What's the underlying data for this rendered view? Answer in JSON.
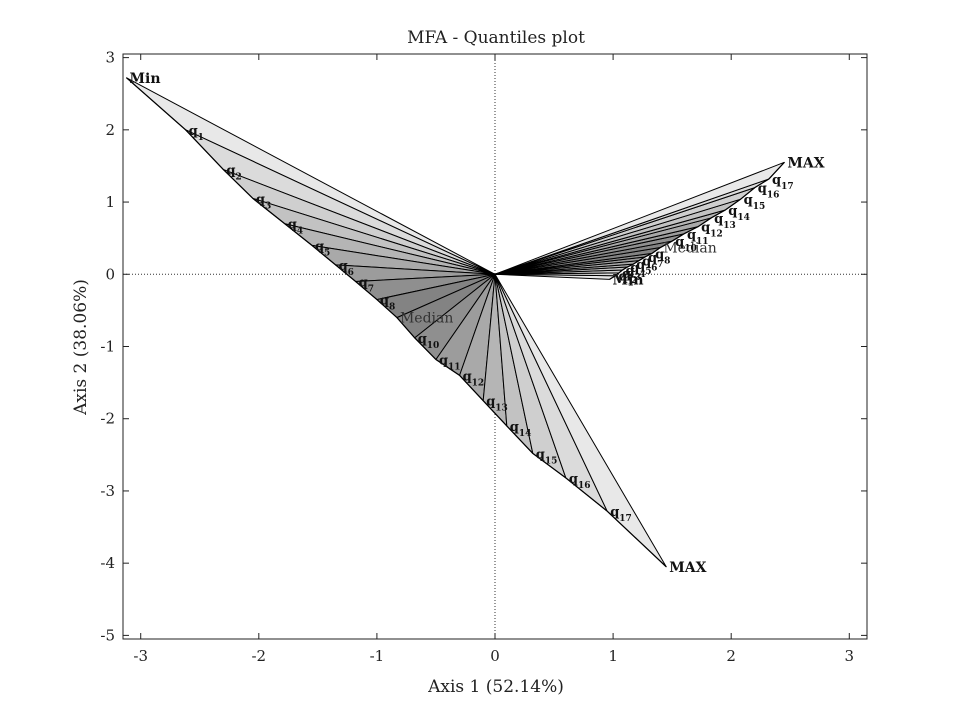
{
  "chart_data": {
    "type": "scatter",
    "title": "MFA - Quantiles plot",
    "xlabel": "Axis 1 (52.14%)",
    "ylabel": "Axis 2 (38.06%)",
    "xlim": [
      -3.15,
      3.15
    ],
    "ylim": [
      -5.05,
      3.05
    ],
    "xticks": [
      -3,
      -2,
      -1,
      0,
      1,
      2,
      3
    ],
    "yticks": [
      -5,
      -4,
      -3,
      -2,
      -1,
      0,
      1,
      2,
      3
    ],
    "xtick_labels": [
      "-3",
      "-2",
      "-1",
      "0",
      "1",
      "2",
      "3"
    ],
    "ytick_labels": [
      "-5",
      "-4",
      "-3",
      "-2",
      "-1",
      "0",
      "1",
      "2",
      "3"
    ],
    "reference_lines": "dotted lines at x = 0 and y = 0",
    "origin": [
      0,
      0
    ],
    "series": [
      {
        "min_label": "Min",
        "max_label": "MAX",
        "median_label": "Median",
        "median_index": 9,
        "quantile_labels": [
          "q1",
          "q2",
          "q3",
          "q4",
          "q5",
          "q6",
          "q7",
          "q8",
          "q10",
          "q11",
          "q12",
          "q13",
          "q14",
          "q15",
          "q16",
          "q17"
        ],
        "points": [
          {
            "x": -3.12,
            "y": 2.72,
            "label": "Min"
          },
          {
            "x": -2.62,
            "y": 2.0,
            "label": "q1"
          },
          {
            "x": -2.3,
            "y": 1.45,
            "label": "q2"
          },
          {
            "x": -2.05,
            "y": 1.05,
            "label": "q3"
          },
          {
            "x": -1.78,
            "y": 0.7,
            "label": "q4"
          },
          {
            "x": -1.55,
            "y": 0.4,
            "label": "q5"
          },
          {
            "x": -1.35,
            "y": 0.13,
            "label": "q6"
          },
          {
            "x": -1.18,
            "y": -0.1,
            "label": "q7"
          },
          {
            "x": -1.0,
            "y": -0.35,
            "label": "q8"
          },
          {
            "x": -0.83,
            "y": -0.6,
            "label": "Median"
          },
          {
            "x": -0.68,
            "y": -0.88,
            "label": "q10"
          },
          {
            "x": -0.5,
            "y": -1.18,
            "label": "q11"
          },
          {
            "x": -0.3,
            "y": -1.4,
            "label": "q12"
          },
          {
            "x": -0.1,
            "y": -1.75,
            "label": "q13"
          },
          {
            "x": 0.1,
            "y": -2.1,
            "label": "q14"
          },
          {
            "x": 0.32,
            "y": -2.48,
            "label": "q15"
          },
          {
            "x": 0.6,
            "y": -2.82,
            "label": "q16"
          },
          {
            "x": 0.95,
            "y": -3.28,
            "label": "q17"
          },
          {
            "x": 1.45,
            "y": -4.05,
            "label": "MAX"
          }
        ]
      },
      {
        "min_label": "Min",
        "max_label": "MAX",
        "median_label": "Median",
        "median_index": 9,
        "quantile_labels": [
          "q1",
          "q2",
          "q3",
          "q4",
          "q5",
          "q6",
          "q7",
          "q8",
          "q10",
          "q11",
          "q12",
          "q13",
          "q14",
          "q15",
          "q16",
          "q17"
        ],
        "points": [
          {
            "x": 0.97,
            "y": -0.07,
            "label": "Min"
          },
          {
            "x": 1.02,
            "y": -0.02,
            "label": "q1"
          },
          {
            "x": 1.05,
            "y": 0.02,
            "label": "q2"
          },
          {
            "x": 1.08,
            "y": 0.06,
            "label": "q3"
          },
          {
            "x": 1.12,
            "y": 0.1,
            "label": "q4"
          },
          {
            "x": 1.17,
            "y": 0.14,
            "label": "q5"
          },
          {
            "x": 1.22,
            "y": 0.19,
            "label": "q6"
          },
          {
            "x": 1.27,
            "y": 0.24,
            "label": "q7"
          },
          {
            "x": 1.33,
            "y": 0.29,
            "label": "q8"
          },
          {
            "x": 1.4,
            "y": 0.37,
            "label": "Median"
          },
          {
            "x": 1.5,
            "y": 0.46,
            "label": "q10"
          },
          {
            "x": 1.6,
            "y": 0.56,
            "label": "q11"
          },
          {
            "x": 1.72,
            "y": 0.66,
            "label": "q12"
          },
          {
            "x": 1.83,
            "y": 0.78,
            "label": "q13"
          },
          {
            "x": 1.95,
            "y": 0.89,
            "label": "q14"
          },
          {
            "x": 2.08,
            "y": 1.04,
            "label": "q15"
          },
          {
            "x": 2.2,
            "y": 1.2,
            "label": "q16"
          },
          {
            "x": 2.32,
            "y": 1.32,
            "label": "q17"
          },
          {
            "x": 2.45,
            "y": 1.55,
            "label": "MAX"
          }
        ]
      }
    ]
  }
}
